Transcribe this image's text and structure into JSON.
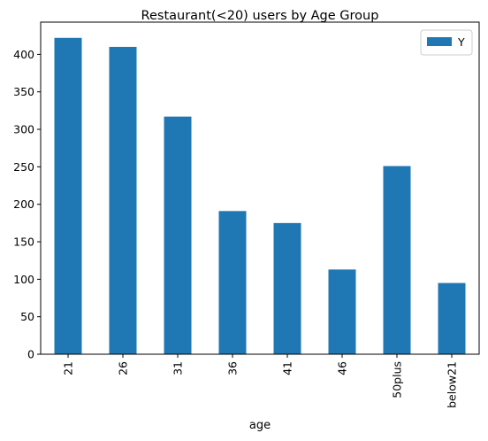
{
  "chart_data": {
    "type": "bar",
    "title": "Restaurant(<20) users by Age Group",
    "xlabel": "age",
    "ylabel": "",
    "categories": [
      "21",
      "26",
      "31",
      "36",
      "41",
      "46",
      "50plus",
      "below21"
    ],
    "series": [
      {
        "name": "Y",
        "values": [
          422,
          410,
          317,
          191,
          175,
          113,
          251,
          95
        ],
        "color": "#1f77b4"
      }
    ],
    "ylim": [
      0,
      443
    ],
    "yticks": [
      0,
      50,
      100,
      150,
      200,
      250,
      300,
      350,
      400
    ],
    "grid": false,
    "legend_position": "top-right"
  }
}
